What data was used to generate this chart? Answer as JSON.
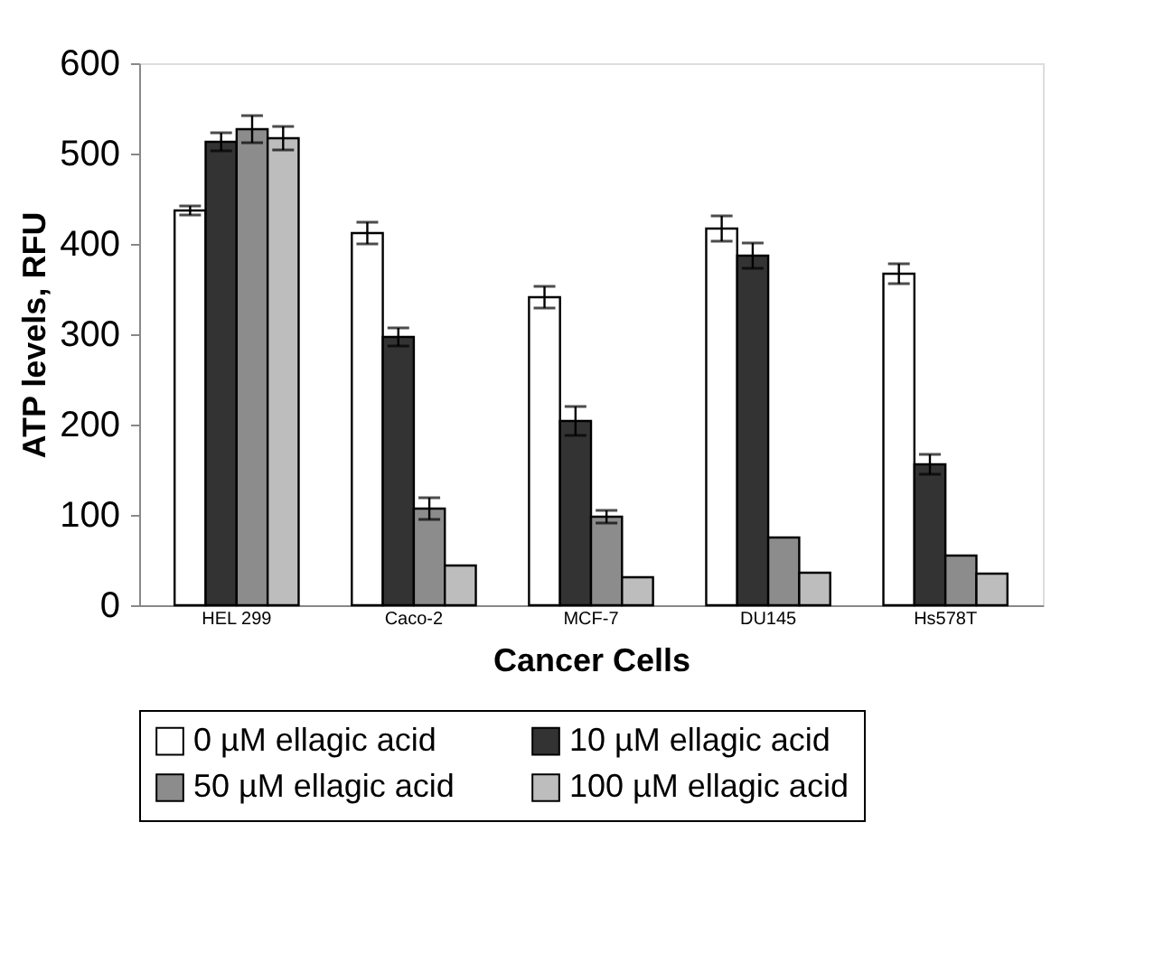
{
  "chart_data": {
    "type": "bar",
    "xlabel": "Cancer Cells",
    "ylabel": "ATP levels, RFU",
    "categories": [
      "HEL 299",
      "Caco-2",
      "MCF-7",
      "DU145",
      "Hs578T"
    ],
    "series": [
      {
        "name": "0 µM ellagic acid",
        "color": "#ffffff",
        "values": [
          437,
          412,
          341,
          417,
          367
        ],
        "errors": [
          5,
          12,
          12,
          14,
          11
        ]
      },
      {
        "name": "10 µM ellagic acid",
        "color": "#333333",
        "values": [
          513,
          297,
          204,
          387,
          156
        ],
        "errors": [
          10,
          10,
          16,
          14,
          11
        ]
      },
      {
        "name": "50 µM ellagic acid",
        "color": "#8c8c8c",
        "values": [
          527,
          107,
          98,
          75,
          55
        ],
        "errors": [
          15,
          12,
          7,
          null,
          null
        ]
      },
      {
        "name": "100 µM ellagic acid",
        "color": "#bdbdbd",
        "values": [
          517,
          44,
          31,
          36,
          35
        ],
        "errors": [
          13,
          null,
          null,
          null,
          null
        ]
      }
    ],
    "ylim": [
      0,
      600
    ],
    "yticks": [
      0,
      100,
      200,
      300,
      400,
      500,
      600
    ],
    "grid": false,
    "legend": "bottom"
  }
}
